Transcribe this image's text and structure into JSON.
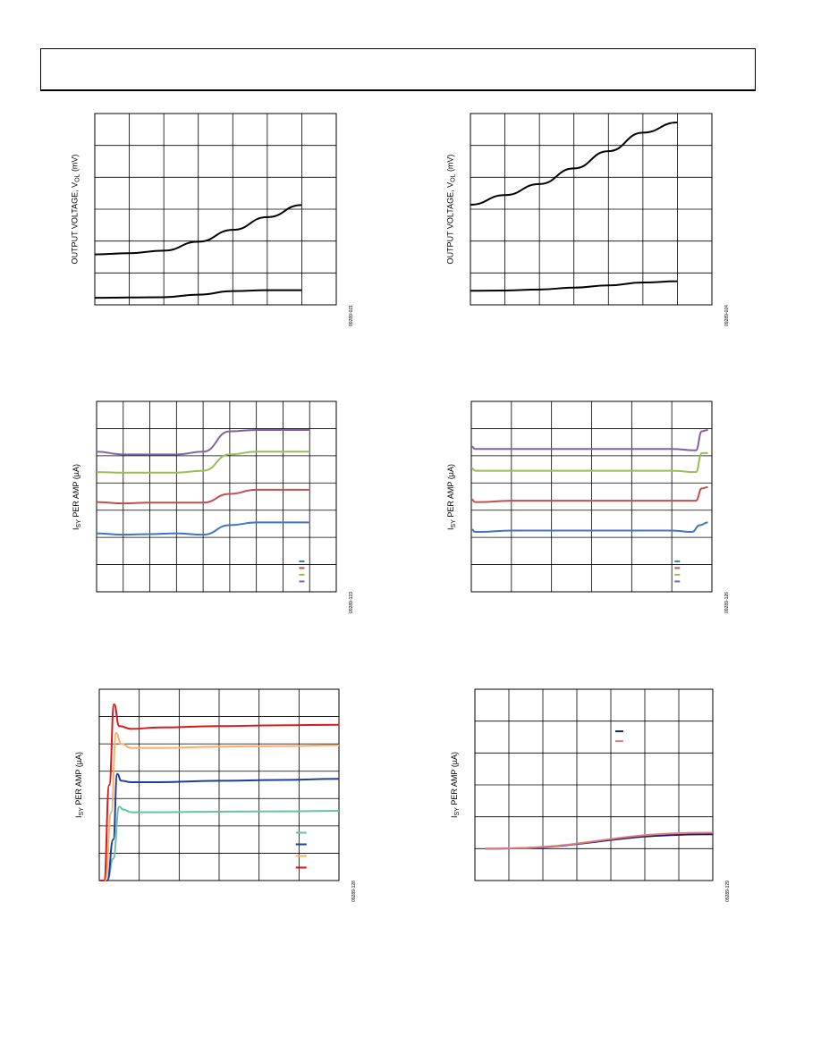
{
  "page": {
    "header": {}
  },
  "chart_data": [
    {
      "id": "c1",
      "type": "line",
      "ylabel_main": "OUTPUT VOLTAGE, V",
      "ylabel_sub": "OL",
      "ylabel_unit": " (mV)",
      "figure_id": "09289-021",
      "xlim": [
        0,
        7
      ],
      "ylim": [
        0,
        6
      ],
      "x_divisions": 7,
      "y_divisions": 6,
      "series": [
        {
          "color": "#000000",
          "points": [
            [
              0,
              1.58
            ],
            [
              1,
              1.62
            ],
            [
              2,
              1.7
            ],
            [
              3,
              1.98
            ],
            [
              4,
              2.35
            ],
            [
              5,
              2.75
            ],
            [
              6,
              3.13
            ]
          ]
        },
        {
          "color": "#000000",
          "points": [
            [
              0,
              0.22
            ],
            [
              1,
              0.23
            ],
            [
              2,
              0.24
            ],
            [
              3,
              0.32
            ],
            [
              4,
              0.43
            ],
            [
              5,
              0.46
            ],
            [
              6,
              0.46
            ]
          ]
        }
      ]
    },
    {
      "id": "c2",
      "type": "line",
      "ylabel_main": "OUTPUT VOLTAGE, V",
      "ylabel_sub": "OL",
      "ylabel_unit": " (mV)",
      "figure_id": "09289-024",
      "xlim": [
        0,
        7
      ],
      "ylim": [
        0,
        6
      ],
      "x_divisions": 7,
      "y_divisions": 6,
      "series": [
        {
          "color": "#000000",
          "points": [
            [
              0,
              3.14
            ],
            [
              1,
              3.44
            ],
            [
              2,
              3.79
            ],
            [
              3,
              4.28
            ],
            [
              4,
              4.82
            ],
            [
              5,
              5.4
            ],
            [
              6,
              5.72
            ]
          ]
        },
        {
          "color": "#000000",
          "points": [
            [
              0,
              0.44
            ],
            [
              1,
              0.45
            ],
            [
              2,
              0.48
            ],
            [
              3,
              0.54
            ],
            [
              4,
              0.61
            ],
            [
              5,
              0.7
            ],
            [
              6,
              0.74
            ]
          ]
        }
      ]
    },
    {
      "id": "c3",
      "type": "line",
      "ylabel_main": "I",
      "ylabel_sub": "SY",
      "ylabel_unit": " PER AMP (µA)",
      "figure_id": "09289-123",
      "xlim": [
        0,
        9
      ],
      "ylim": [
        0,
        7
      ],
      "x_divisions": 9,
      "y_divisions": 7,
      "legend": [
        "",
        "",
        "",
        ""
      ],
      "series": [
        {
          "color": "#4472c4",
          "points": [
            [
              0,
              2.15
            ],
            [
              1,
              2.1
            ],
            [
              2,
              2.12
            ],
            [
              3,
              2.15
            ],
            [
              4,
              2.1
            ],
            [
              5,
              2.45
            ],
            [
              6,
              2.55
            ],
            [
              7,
              2.55
            ],
            [
              8,
              2.55
            ]
          ]
        },
        {
          "color": "#c0504d",
          "points": [
            [
              0,
              3.3
            ],
            [
              1,
              3.25
            ],
            [
              2,
              3.28
            ],
            [
              3,
              3.28
            ],
            [
              4,
              3.28
            ],
            [
              5,
              3.6
            ],
            [
              6,
              3.75
            ],
            [
              7,
              3.75
            ],
            [
              8,
              3.75
            ]
          ]
        },
        {
          "color": "#9bbb59",
          "points": [
            [
              0,
              4.4
            ],
            [
              1,
              4.38
            ],
            [
              2,
              4.38
            ],
            [
              3,
              4.38
            ],
            [
              4,
              4.45
            ],
            [
              5,
              5.05
            ],
            [
              6,
              5.15
            ],
            [
              7,
              5.15
            ],
            [
              8,
              5.15
            ]
          ]
        },
        {
          "color": "#8064a2",
          "points": [
            [
              0,
              5.15
            ],
            [
              1,
              5.05
            ],
            [
              2,
              5.05
            ],
            [
              3,
              5.05
            ],
            [
              4,
              5.15
            ],
            [
              5,
              5.9
            ],
            [
              6,
              5.95
            ],
            [
              7,
              5.95
            ],
            [
              8,
              5.95
            ]
          ]
        }
      ]
    },
    {
      "id": "c4",
      "type": "line",
      "ylabel_main": "I",
      "ylabel_sub": "SY",
      "ylabel_unit": " PER AMP (µA)",
      "figure_id": "09289-126",
      "xlim": [
        0,
        6
      ],
      "ylim": [
        0,
        7
      ],
      "x_divisions": 6,
      "y_divisions": 7,
      "legend": [
        "",
        "",
        "",
        ""
      ],
      "series": [
        {
          "color": "#4472c4",
          "points": [
            [
              0,
              2.3
            ],
            [
              0.1,
              2.2
            ],
            [
              0.2,
              2.2
            ],
            [
              1,
              2.25
            ],
            [
              2,
              2.25
            ],
            [
              3,
              2.25
            ],
            [
              4,
              2.25
            ],
            [
              5,
              2.25
            ],
            [
              5.5,
              2.2
            ],
            [
              5.7,
              2.45
            ],
            [
              5.9,
              2.55
            ]
          ]
        },
        {
          "color": "#c0504d",
          "points": [
            [
              0,
              3.4
            ],
            [
              0.1,
              3.3
            ],
            [
              0.2,
              3.3
            ],
            [
              1,
              3.35
            ],
            [
              2,
              3.35
            ],
            [
              3,
              3.35
            ],
            [
              4,
              3.35
            ],
            [
              5,
              3.35
            ],
            [
              5.6,
              3.35
            ],
            [
              5.75,
              3.8
            ],
            [
              5.9,
              3.85
            ]
          ]
        },
        {
          "color": "#9bbb59",
          "points": [
            [
              0,
              4.55
            ],
            [
              0.1,
              4.45
            ],
            [
              0.2,
              4.45
            ],
            [
              1,
              4.45
            ],
            [
              2,
              4.45
            ],
            [
              3,
              4.45
            ],
            [
              4,
              4.45
            ],
            [
              5,
              4.45
            ],
            [
              5.6,
              4.4
            ],
            [
              5.75,
              5.1
            ],
            [
              5.9,
              5.1
            ]
          ]
        },
        {
          "color": "#8064a2",
          "points": [
            [
              0,
              5.35
            ],
            [
              0.1,
              5.25
            ],
            [
              0.2,
              5.25
            ],
            [
              1,
              5.25
            ],
            [
              2,
              5.25
            ],
            [
              3,
              5.25
            ],
            [
              4,
              5.25
            ],
            [
              5,
              5.25
            ],
            [
              5.6,
              5.2
            ],
            [
              5.75,
              5.9
            ],
            [
              5.9,
              5.95
            ]
          ]
        }
      ]
    },
    {
      "id": "c5",
      "type": "line",
      "ylabel_main": "I",
      "ylabel_sub": "SY",
      "ylabel_unit": " PER AMP (µA)",
      "figure_id": "09289-128",
      "xlim": [
        0,
        6
      ],
      "ylim": [
        0,
        7
      ],
      "x_divisions": 6,
      "y_divisions": 7,
      "legend": [
        "",
        "",
        "",
        ""
      ],
      "series": [
        {
          "color": "#66c2a5",
          "points": [
            [
              0,
              0
            ],
            [
              0.2,
              0
            ],
            [
              0.35,
              0.8
            ],
            [
              0.5,
              2.7
            ],
            [
              0.6,
              2.6
            ],
            [
              0.8,
              2.5
            ],
            [
              1.5,
              2.5
            ],
            [
              3,
              2.52
            ],
            [
              4.5,
              2.53
            ],
            [
              6,
              2.55
            ]
          ]
        },
        {
          "color": "#1f3e99",
          "points": [
            [
              0,
              0
            ],
            [
              0.2,
              0
            ],
            [
              0.35,
              1.5
            ],
            [
              0.45,
              3.9
            ],
            [
              0.55,
              3.65
            ],
            [
              0.8,
              3.6
            ],
            [
              1.5,
              3.6
            ],
            [
              3,
              3.65
            ],
            [
              4.5,
              3.68
            ],
            [
              6,
              3.72
            ]
          ]
        },
        {
          "color": "#fdae6b",
          "points": [
            [
              0,
              0
            ],
            [
              0.15,
              0
            ],
            [
              0.3,
              2.5
            ],
            [
              0.42,
              5.4
            ],
            [
              0.55,
              5.0
            ],
            [
              0.8,
              4.85
            ],
            [
              1.5,
              4.85
            ],
            [
              3,
              4.9
            ],
            [
              4.5,
              4.92
            ],
            [
              6,
              4.95
            ]
          ]
        },
        {
          "color": "#d7191c",
          "points": [
            [
              0,
              0
            ],
            [
              0.12,
              0
            ],
            [
              0.25,
              3.5
            ],
            [
              0.37,
              6.45
            ],
            [
              0.5,
              5.65
            ],
            [
              0.8,
              5.55
            ],
            [
              1.5,
              5.6
            ],
            [
              3,
              5.65
            ],
            [
              4.5,
              5.68
            ],
            [
              6,
              5.7
            ]
          ]
        }
      ]
    },
    {
      "id": "c6",
      "type": "line",
      "ylabel_main": "I",
      "ylabel_sub": "SY",
      "ylabel_unit": " PER AMP (µA)",
      "figure_id": "09289-129",
      "xlim": [
        0,
        7
      ],
      "ylim": [
        0,
        6
      ],
      "x_divisions": 7,
      "y_divisions": 6,
      "legend": [
        "",
        ""
      ],
      "series": [
        {
          "color": "#1b1b6e",
          "points": [
            [
              0.3,
              1.0
            ],
            [
              7,
              1.45
            ]
          ]
        },
        {
          "color": "#e07b7b",
          "points": [
            [
              0.3,
              1.0
            ],
            [
              7,
              1.5
            ]
          ]
        }
      ]
    }
  ]
}
